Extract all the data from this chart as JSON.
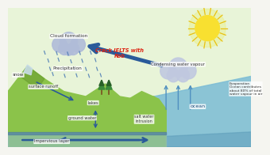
{
  "bg_color": "#f5f5f0",
  "land_color": "#8bc34a",
  "land_dark": "#6a9e30",
  "land_shadow": "#5a8820",
  "ocean_color": "#7bbcd5",
  "ocean_dark": "#5a9ab8",
  "underground_color": "#90bdd0",
  "sky_top": "#dff0d0",
  "cloud_left_color": "#b0bcd8",
  "cloud_right_color": "#c0c8e0",
  "sun_color": "#f8e030",
  "sun_ray_color": "#e8c010",
  "rain_color": "#4a7ab5",
  "arrow_main_color": "#2a5a9a",
  "evap_arrow_color": "#5090c0",
  "snow_color": "#c8dce8",
  "tree_green": "#3a8a3a",
  "tree_dark": "#286028",
  "text_dark": "#333333",
  "crack_color": "#dd2211",
  "label_bg": "#ffffff",
  "text_labels": {
    "cloud_formation": "Cloud formation",
    "precipitation": "Precipitation",
    "snow": "snow",
    "surface_runoff": "surface runoff",
    "lakes": "lakes",
    "ground_water": "ground water",
    "impervious_layer": "Impervious layer",
    "condensing": "Condensing water vapour",
    "evaporation": "Evaporation\nOcean contributes\nabout 80% of total\nwater vapour in air",
    "salt_water": "salt water\nintrusion",
    "ocean": "ocean",
    "crack_ielts": "Crack IELTS with\nRob"
  }
}
